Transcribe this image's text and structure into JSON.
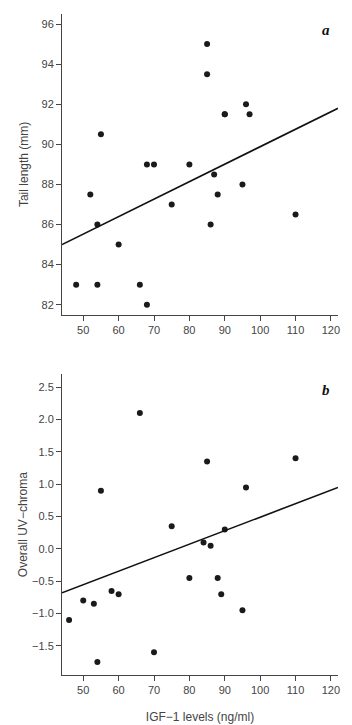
{
  "chart_data": [
    {
      "type": "scatter",
      "ylabel": "Tail length (mm)",
      "annotations": [
        {
          "text": "a"
        }
      ],
      "xlim": [
        44,
        122
      ],
      "ylim": [
        81.5,
        96.5
      ],
      "xticks": [
        50,
        60,
        70,
        80,
        90,
        100,
        110,
        120
      ],
      "yticks": [
        82,
        84,
        86,
        88,
        90,
        92,
        94,
        96
      ],
      "grid": false,
      "series": [
        {
          "type": "scatter",
          "marker": "circle",
          "color": "#1a1a1a",
          "x": [
            48,
            52,
            54,
            54,
            55,
            60,
            66,
            68,
            68,
            70,
            75,
            80,
            85,
            85,
            86,
            87,
            88,
            90,
            90,
            95,
            96,
            97,
            110
          ],
          "values": [
            83,
            87.5,
            86,
            83,
            90.5,
            85,
            83,
            89,
            82,
            89,
            87,
            89,
            95,
            93.5,
            86,
            88.5,
            87.5,
            91.5,
            91.5,
            88,
            92,
            91.5,
            86.5
          ]
        },
        {
          "type": "line",
          "line_style": "solid",
          "color": "#111111",
          "x": [
            44,
            122
          ],
          "values": [
            85.0,
            91.8
          ]
        }
      ]
    },
    {
      "type": "scatter",
      "xlabel": "IGF−1 levels (ng/ml)",
      "ylabel": "Overall UV−chroma",
      "annotations": [
        {
          "text": "b"
        }
      ],
      "xlim": [
        44,
        122
      ],
      "ylim": [
        -1.95,
        2.7
      ],
      "xticks": [
        50,
        60,
        70,
        80,
        90,
        100,
        110,
        120
      ],
      "yticks": [
        {
          "value": -1.5,
          "label": "−1.5"
        },
        {
          "value": -1.0,
          "label": "−1.0"
        },
        {
          "value": -0.5,
          "label": "−0.5"
        },
        {
          "value": 0.0,
          "label": "0.0"
        },
        0.5,
        {
          "value": 1.0,
          "label": "1.0"
        },
        1.5,
        {
          "value": 2.0,
          "label": "2.0"
        },
        2.5
      ],
      "grid": false,
      "series": [
        {
          "type": "scatter",
          "marker": "circle",
          "color": "#1a1a1a",
          "x": [
            46,
            50,
            53,
            54,
            55,
            58,
            60,
            66,
            70,
            75,
            80,
            84,
            85,
            86,
            88,
            89,
            90,
            95,
            96,
            110
          ],
          "values": [
            -1.1,
            -0.8,
            -0.85,
            -1.75,
            0.9,
            -0.65,
            -0.7,
            2.1,
            -1.6,
            0.35,
            -0.45,
            0.1,
            1.35,
            0.05,
            -0.45,
            -0.7,
            0.3,
            -0.95,
            0.95,
            1.4
          ]
        },
        {
          "type": "line",
          "line_style": "solid",
          "color": "#111111",
          "x": [
            44,
            122
          ],
          "values": [
            -0.68,
            0.95
          ]
        }
      ]
    }
  ]
}
